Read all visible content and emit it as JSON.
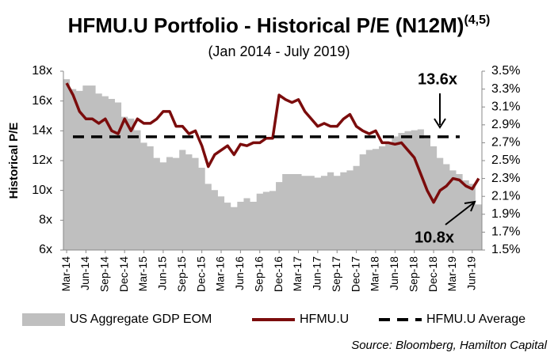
{
  "chart_data": {
    "type": "combo",
    "title": "HFMU.U Portfolio - Historical P/E (N12M)",
    "title_superscript": "(4,5)",
    "subtitle": "(Jan 2014 - July 2019)",
    "y_label": "Historical P/E",
    "source": "Source: Bloomberg, Hamilton Capital",
    "categories": [
      "Mar-14",
      null,
      null,
      "Jun-14",
      null,
      null,
      "Sep-14",
      null,
      null,
      "Dec-14",
      null,
      null,
      "Mar-15",
      null,
      null,
      "Jun-15",
      null,
      null,
      "Sep-15",
      null,
      null,
      "Dec-15",
      null,
      null,
      "Mar-16",
      null,
      null,
      "Jun-16",
      null,
      null,
      "Sep-16",
      null,
      null,
      "Dec-16",
      null,
      null,
      "Mar-17",
      null,
      null,
      "Jun-17",
      null,
      null,
      "Sep-17",
      null,
      null,
      "Dec-17",
      null,
      null,
      "Mar-18",
      null,
      null,
      "Jun-18",
      null,
      null,
      "Sep-18",
      null,
      null,
      "Dec-18",
      null,
      null,
      "Mar-19",
      null,
      null,
      "Jun-19",
      null
    ],
    "series": [
      {
        "name": "US Aggregate GDP EOM",
        "type": "area",
        "axis": "y2",
        "color": "#bfbfbf",
        "values": [
          3.41,
          3.3,
          3.28,
          3.34,
          3.34,
          3.25,
          3.22,
          3.19,
          3.15,
          2.99,
          2.97,
          2.84,
          2.7,
          2.66,
          2.53,
          2.48,
          2.54,
          2.53,
          2.62,
          2.57,
          2.53,
          2.42,
          2.24,
          2.17,
          2.1,
          2.03,
          1.98,
          2.04,
          2.08,
          2.04,
          2.13,
          2.15,
          2.16,
          2.26,
          2.35,
          2.35,
          2.35,
          2.33,
          2.33,
          2.31,
          2.33,
          2.37,
          2.33,
          2.37,
          2.39,
          2.44,
          2.57,
          2.62,
          2.63,
          2.66,
          2.7,
          2.77,
          2.81,
          2.83,
          2.84,
          2.85,
          2.75,
          2.66,
          2.53,
          2.46,
          2.39,
          2.35,
          2.28,
          2.24,
          2.01
        ]
      },
      {
        "name": "HFMU.U",
        "type": "line",
        "color": "#7b0c0c",
        "values": [
          17.2,
          16.4,
          15.3,
          14.8,
          14.8,
          14.5,
          14.8,
          14.0,
          13.8,
          14.8,
          14.0,
          14.8,
          14.5,
          14.5,
          14.8,
          15.3,
          15.3,
          14.3,
          14.3,
          13.8,
          14.0,
          13.0,
          11.6,
          12.4,
          12.7,
          13.0,
          12.4,
          13.1,
          13.0,
          13.2,
          13.2,
          13.5,
          13.5,
          16.4,
          16.1,
          15.9,
          16.1,
          15.3,
          14.8,
          14.3,
          14.5,
          14.3,
          14.3,
          14.8,
          15.1,
          14.3,
          14.0,
          13.8,
          14.0,
          13.2,
          13.2,
          13.1,
          13.2,
          12.7,
          12.2,
          11.1,
          10.0,
          9.2,
          10.0,
          10.3,
          10.8,
          10.7,
          10.3,
          10.1,
          10.8
        ]
      }
    ],
    "average": {
      "name": "HFMU.U Average",
      "value": 13.6,
      "label": "13.6x",
      "color": "#000000"
    },
    "annotations": [
      "10.8x"
    ],
    "ylim": [
      6,
      18
    ],
    "yticks": [
      {
        "value": 6,
        "label": "6x"
      },
      {
        "value": 8,
        "label": "8x"
      },
      {
        "value": 10,
        "label": "10x"
      },
      {
        "value": 12,
        "label": "12x"
      },
      {
        "value": 14,
        "label": "14x"
      },
      {
        "value": 16,
        "label": "16x"
      },
      {
        "value": 18,
        "label": "18x"
      }
    ],
    "y2lim": [
      1.5,
      3.5
    ],
    "y2ticks": [
      {
        "value": 1.5,
        "label": "1.5%"
      },
      {
        "value": 1.7,
        "label": "1.7%"
      },
      {
        "value": 1.9,
        "label": "1.9%"
      },
      {
        "value": 2.1,
        "label": "2.1%"
      },
      {
        "value": 2.3,
        "label": "2.3%"
      },
      {
        "value": 2.5,
        "label": "2.5%"
      },
      {
        "value": 2.7,
        "label": "2.7%"
      },
      {
        "value": 2.9,
        "label": "2.9%"
      },
      {
        "value": 3.1,
        "label": "3.1%"
      },
      {
        "value": 3.3,
        "label": "3.3%"
      },
      {
        "value": 3.5,
        "label": "3.5%"
      }
    ],
    "grid": false,
    "legend": "bottom"
  }
}
